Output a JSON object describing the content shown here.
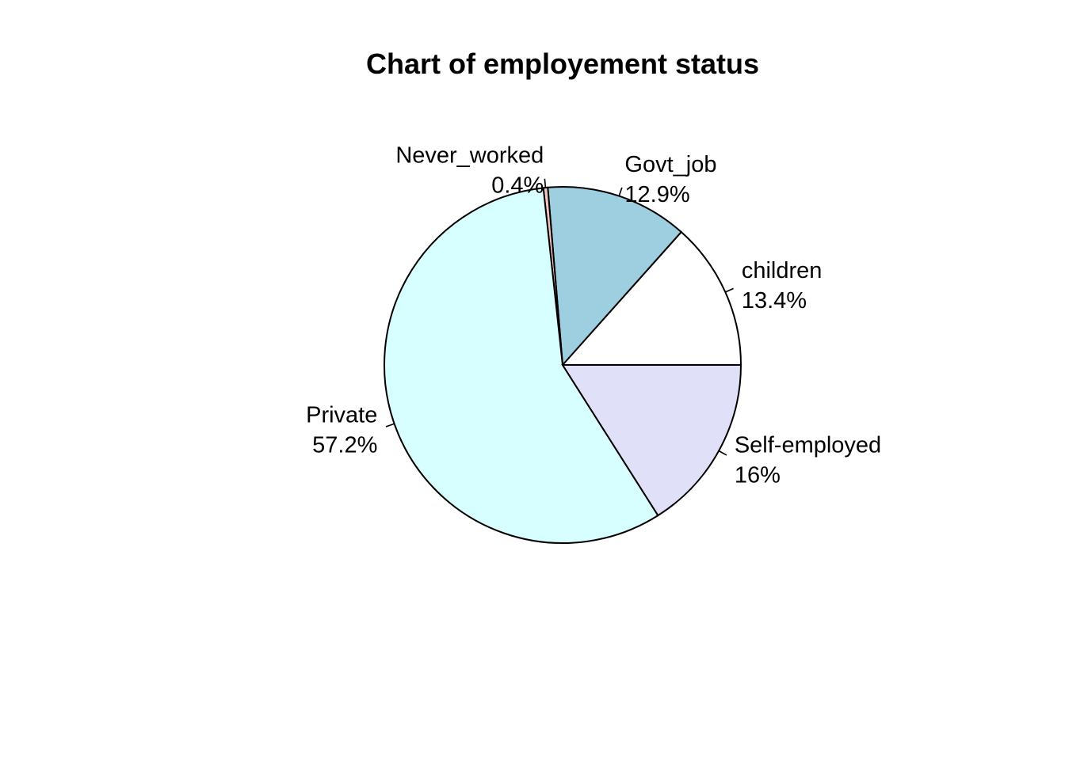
{
  "chart_data": {
    "type": "pie",
    "title": "Chart of employement status",
    "clockwise": false,
    "start_angle_deg": 0,
    "slices": [
      {
        "category": "children",
        "percent_label": "13.4%",
        "value": 13.4,
        "color": "#ffffff",
        "label_align": "start"
      },
      {
        "category": "Govt_job",
        "percent_label": "12.9%",
        "value": 12.9,
        "color": "#9ecfe0",
        "label_align": "start"
      },
      {
        "category": "Never_worked",
        "percent_label": "0.4%",
        "value": 0.4,
        "color": "#f3c4c0",
        "label_align": "end"
      },
      {
        "category": "Private",
        "percent_label": "57.2%",
        "value": 57.2,
        "color": "#d8ffff",
        "label_align": "end"
      },
      {
        "category": "Self-employed",
        "percent_label": "16%",
        "value": 16.0,
        "color": "#e0e0f8",
        "label_align": "start"
      }
    ]
  }
}
